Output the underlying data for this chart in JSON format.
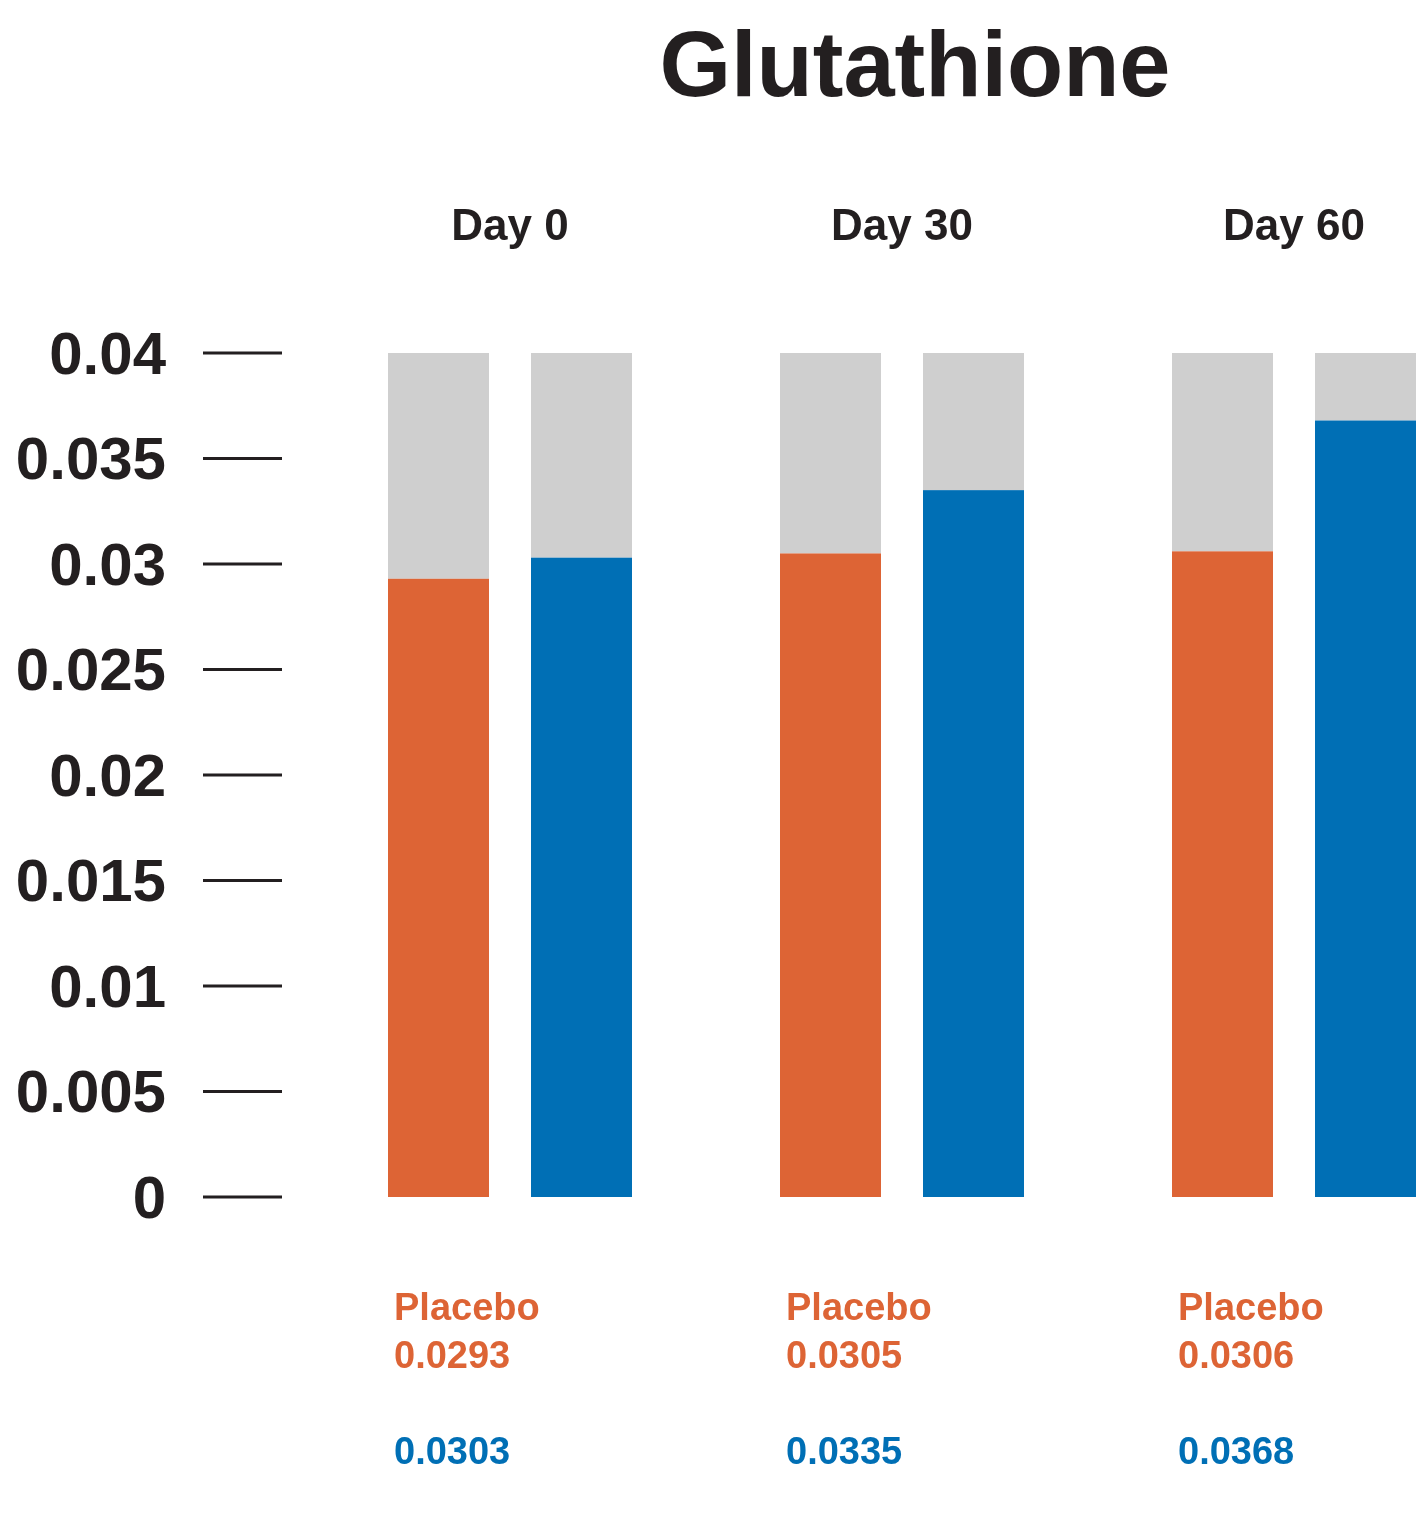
{
  "chart_data": {
    "type": "bar",
    "title": "Glutathione",
    "categories": [
      "Day 0",
      "Day 30",
      "Day 60"
    ],
    "series": [
      {
        "name": "Placebo",
        "color": "#dd6435",
        "values": [
          0.0293,
          0.0305,
          0.0306
        ]
      },
      {
        "color": "#006fb5",
        "values": [
          0.0303,
          0.0335,
          0.0368
        ]
      }
    ],
    "ylim": [
      0,
      0.04
    ],
    "yticks": [
      0,
      0.005,
      0.01,
      0.015,
      0.02,
      0.025,
      0.03,
      0.035,
      0.04
    ],
    "data_labels": true,
    "grid": false,
    "legend": false
  }
}
